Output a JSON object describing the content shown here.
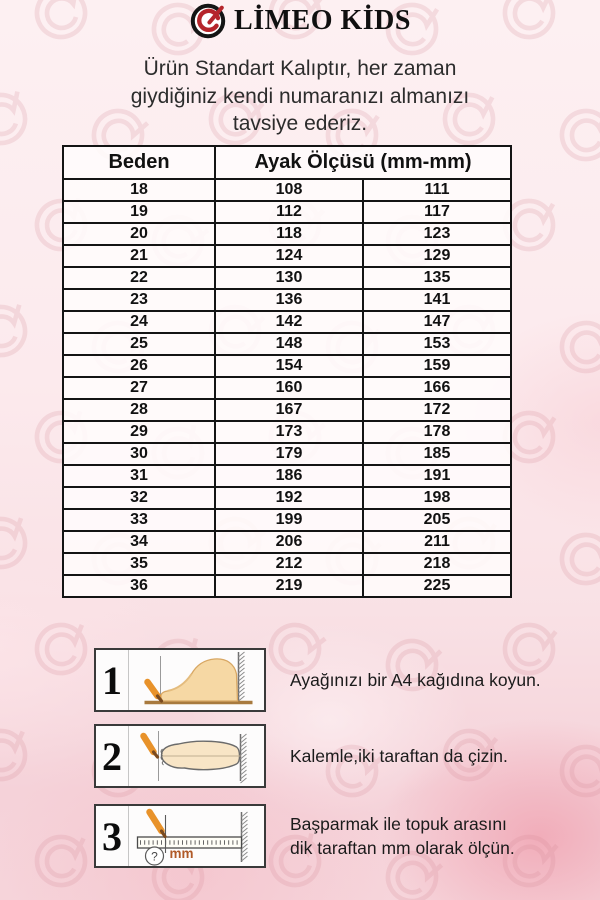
{
  "brand": {
    "logo_text": "LİMEO KİDS",
    "logo_icon": "e-swirl-badge"
  },
  "subtitle": {
    "line1": "Ürün Standart Kalıptır, her zaman",
    "line2": "giydiğiniz kendi numaranızı almanızı",
    "line3": "tavsiye ederiz."
  },
  "size_table": {
    "col1_header": "Beden",
    "col2_header": "Ayak Ölçüsü (mm-mm)",
    "rows": [
      {
        "size": "18",
        "min": "108",
        "max": "111"
      },
      {
        "size": "19",
        "min": "112",
        "max": "117"
      },
      {
        "size": "20",
        "min": "118",
        "max": "123"
      },
      {
        "size": "21",
        "min": "124",
        "max": "129"
      },
      {
        "size": "22",
        "min": "130",
        "max": "135"
      },
      {
        "size": "23",
        "min": "136",
        "max": "141"
      },
      {
        "size": "24",
        "min": "142",
        "max": "147"
      },
      {
        "size": "25",
        "min": "148",
        "max": "153"
      },
      {
        "size": "26",
        "min": "154",
        "max": "159"
      },
      {
        "size": "27",
        "min": "160",
        "max": "166"
      },
      {
        "size": "28",
        "min": "167",
        "max": "172"
      },
      {
        "size": "29",
        "min": "173",
        "max": "178"
      },
      {
        "size": "30",
        "min": "179",
        "max": "185"
      },
      {
        "size": "31",
        "min": "186",
        "max": "191"
      },
      {
        "size": "32",
        "min": "192",
        "max": "198"
      },
      {
        "size": "33",
        "min": "199",
        "max": "205"
      },
      {
        "size": "34",
        "min": "206",
        "max": "211"
      },
      {
        "size": "35",
        "min": "212",
        "max": "218"
      },
      {
        "size": "36",
        "min": "219",
        "max": "225"
      }
    ]
  },
  "steps": [
    {
      "num": "1",
      "line1": "Ayağınızı bir A4 kağıdına koyun.",
      "line2": ""
    },
    {
      "num": "2",
      "line1": "Kalemle,iki taraftan da çizin.",
      "line2": ""
    },
    {
      "num": "3",
      "line1": "Başparmak ile topuk arasını",
      "line2": "dik taraftan mm olarak ölçün.",
      "ruler_label": "mm",
      "question_label": "?"
    }
  ],
  "colors": {
    "accent_red": "#b5252b",
    "background_pink": "#f8dde2",
    "watermark_pink": "#d48794",
    "table_border": "#141414",
    "pencil_orange": "#e8922a",
    "foot_tan": "#f6d8a4",
    "ground_brown": "#a87a3e",
    "ruler_label_brown": "#b05a28"
  }
}
